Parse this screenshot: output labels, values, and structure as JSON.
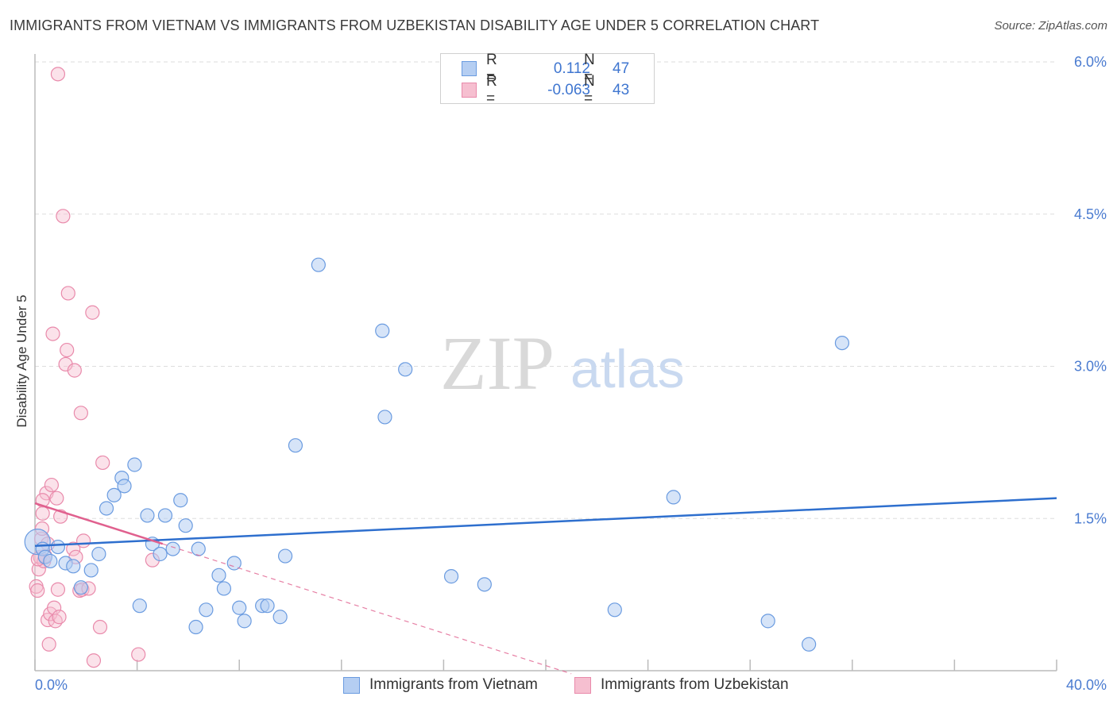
{
  "title": "IMMIGRANTS FROM VIETNAM VS IMMIGRANTS FROM UZBEKISTAN DISABILITY AGE UNDER 5 CORRELATION CHART",
  "source": "Source: ZipAtlas.com",
  "watermark": {
    "zip": "ZIP",
    "atlas": "atlas"
  },
  "legend": {
    "rows": [
      {
        "r_label": "R =",
        "r_value": "0.112",
        "n_label": "N =",
        "n_value": "47"
      },
      {
        "r_label": "R =",
        "r_value": "-0.063",
        "n_label": "N =",
        "n_value": "43"
      }
    ]
  },
  "colors": {
    "vietnam_fill": "#b5cef2",
    "vietnam_stroke": "#6a9be0",
    "vietnam_line": "#2e6fce",
    "uzbek_fill": "#f6bfd0",
    "uzbek_stroke": "#e98aab",
    "uzbek_line": "#e0608e",
    "grid": "#dddddd",
    "axis_text": "#4a7bd0"
  },
  "chart_data": {
    "type": "scatter",
    "title": "IMMIGRANTS FROM VIETNAM VS IMMIGRANTS FROM UZBEKISTAN DISABILITY AGE UNDER 5 CORRELATION CHART",
    "xlabel": "",
    "ylabel": "Disability Age Under 5",
    "xlim": [
      0,
      40
    ],
    "ylim": [
      0,
      6.0
    ],
    "x_tick_labels": [
      "0.0%",
      "40.0%"
    ],
    "y_ticks": [
      1.5,
      3.0,
      4.5,
      6.0
    ],
    "y_tick_labels": [
      "1.5%",
      "3.0%",
      "4.5%",
      "6.0%"
    ],
    "grid": "horizontal dashed",
    "legend_position": "top-center",
    "series": [
      {
        "name": "Immigrants from Vietnam",
        "r": 0.112,
        "n": 47,
        "trend": {
          "x": [
            0,
            40
          ],
          "y": [
            1.23,
            1.7
          ]
        },
        "points": [
          [
            0.1,
            1.27
          ],
          [
            0.3,
            1.2
          ],
          [
            0.4,
            1.12
          ],
          [
            0.6,
            1.08
          ],
          [
            0.9,
            1.22
          ],
          [
            1.2,
            1.06
          ],
          [
            1.5,
            1.03
          ],
          [
            1.8,
            0.82
          ],
          [
            2.2,
            0.99
          ],
          [
            2.5,
            1.15
          ],
          [
            2.8,
            1.6
          ],
          [
            3.1,
            1.73
          ],
          [
            3.4,
            1.9
          ],
          [
            3.5,
            1.82
          ],
          [
            3.9,
            2.03
          ],
          [
            4.1,
            0.64
          ],
          [
            4.4,
            1.53
          ],
          [
            4.6,
            1.25
          ],
          [
            4.9,
            1.15
          ],
          [
            5.1,
            1.53
          ],
          [
            5.4,
            1.2
          ],
          [
            5.7,
            1.68
          ],
          [
            5.9,
            1.43
          ],
          [
            6.4,
            1.2
          ],
          [
            6.3,
            0.43
          ],
          [
            6.7,
            0.6
          ],
          [
            7.2,
            0.94
          ],
          [
            7.4,
            0.81
          ],
          [
            7.8,
            1.06
          ],
          [
            8.0,
            0.62
          ],
          [
            8.2,
            0.49
          ],
          [
            8.9,
            0.64
          ],
          [
            9.1,
            0.64
          ],
          [
            9.6,
            0.53
          ],
          [
            9.8,
            1.13
          ],
          [
            10.2,
            2.22
          ],
          [
            11.1,
            4.0
          ],
          [
            13.6,
            3.35
          ],
          [
            13.7,
            2.5
          ],
          [
            14.5,
            2.97
          ],
          [
            16.3,
            0.93
          ],
          [
            17.6,
            0.85
          ],
          [
            22.7,
            0.6
          ],
          [
            25.0,
            1.71
          ],
          [
            28.7,
            0.49
          ],
          [
            30.3,
            0.26
          ],
          [
            31.6,
            3.23
          ]
        ]
      },
      {
        "name": "Immigrants from Uzbekistan",
        "r": -0.063,
        "n": 43,
        "trend": {
          "x": [
            0,
            5.0
          ],
          "y": [
            1.65,
            1.25
          ]
        },
        "trend_extension": {
          "x": [
            5.0,
            21.0
          ],
          "y": [
            1.25,
            -0.03
          ]
        },
        "points": [
          [
            0.05,
            0.83
          ],
          [
            0.1,
            0.79
          ],
          [
            0.15,
            1.0
          ],
          [
            0.2,
            1.12
          ],
          [
            0.25,
            1.3
          ],
          [
            0.3,
            1.55
          ],
          [
            0.35,
            1.08
          ],
          [
            0.4,
            1.13
          ],
          [
            0.45,
            1.75
          ],
          [
            0.5,
            0.5
          ],
          [
            0.55,
            0.26
          ],
          [
            0.6,
            0.56
          ],
          [
            0.65,
            1.83
          ],
          [
            0.7,
            3.32
          ],
          [
            0.75,
            0.62
          ],
          [
            0.8,
            0.49
          ],
          [
            0.85,
            1.7
          ],
          [
            0.9,
            0.8
          ],
          [
            0.95,
            0.53
          ],
          [
            1.0,
            1.52
          ],
          [
            0.9,
            5.88
          ],
          [
            1.1,
            4.48
          ],
          [
            1.2,
            3.02
          ],
          [
            1.25,
            3.16
          ],
          [
            1.3,
            3.72
          ],
          [
            1.5,
            1.2
          ],
          [
            1.55,
            2.96
          ],
          [
            1.6,
            1.12
          ],
          [
            1.75,
            0.79
          ],
          [
            1.8,
            2.54
          ],
          [
            1.85,
            0.8
          ],
          [
            1.9,
            1.28
          ],
          [
            2.1,
            0.81
          ],
          [
            2.3,
            0.1
          ],
          [
            2.25,
            3.53
          ],
          [
            2.55,
            0.43
          ],
          [
            2.65,
            2.05
          ],
          [
            4.05,
            0.16
          ],
          [
            4.6,
            1.09
          ],
          [
            0.12,
            1.1
          ],
          [
            0.3,
            1.68
          ],
          [
            0.5,
            1.25
          ],
          [
            0.28,
            1.4
          ]
        ]
      }
    ]
  }
}
